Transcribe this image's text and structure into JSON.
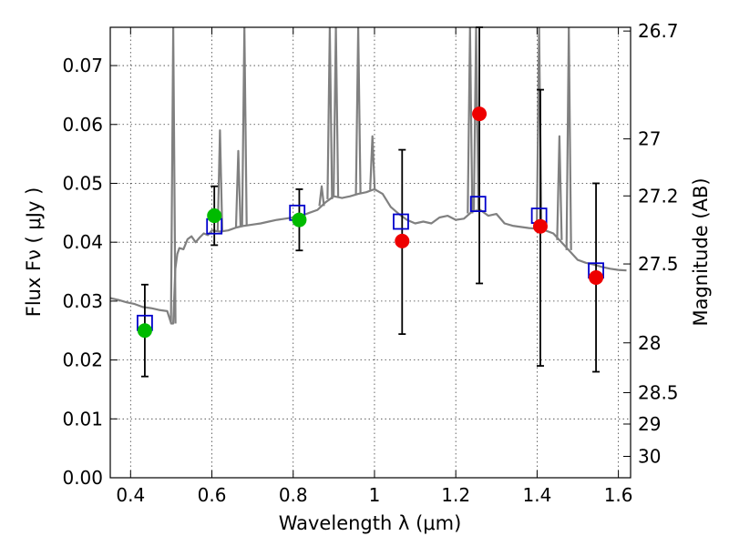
{
  "chart_data": {
    "type": "scatter",
    "xlabel": "Wavelength  λ (μm)",
    "ylabel": "Flux  Fν  ( μJy )",
    "ylabel_right": "Magnitude (AB)",
    "xlim": [
      0.35,
      1.63
    ],
    "ylim": [
      0.0,
      0.0765
    ],
    "x_ticks": [
      0.4,
      0.6,
      0.8,
      1.0,
      1.2,
      1.4,
      1.6
    ],
    "x_tick_labels": [
      "0.4",
      "0.6",
      "0.8",
      "1",
      "1.2",
      "1.4",
      "1.6"
    ],
    "y_ticks": [
      0.0,
      0.01,
      0.02,
      0.03,
      0.04,
      0.05,
      0.06,
      0.07
    ],
    "y_tick_labels": [
      "0.00",
      "0.01",
      "0.02",
      "0.03",
      "0.04",
      "0.05",
      "0.06",
      "0.07"
    ],
    "right_ticks": [
      26.7,
      27,
      27.2,
      27.5,
      28,
      28.5,
      29,
      30
    ],
    "right_tick_labels": [
      "26.7",
      "27",
      "27.2",
      "27.5",
      "28",
      "28.5",
      "29",
      "30"
    ],
    "grid": true,
    "colors": {
      "model": "#808080",
      "model_photometry": "#0000cc",
      "detection": "#00bb00",
      "nondetection": "#ee0000",
      "errorbar": "#000000"
    },
    "series": [
      {
        "kind": "line",
        "x": [
          0.35,
          0.37,
          0.39,
          0.41,
          0.43,
          0.45,
          0.47,
          0.49,
          0.5,
          0.505,
          0.51,
          0.515,
          0.52,
          0.53,
          0.54,
          0.55,
          0.56,
          0.57,
          0.58,
          0.59,
          0.6,
          0.62,
          0.64,
          0.66,
          0.68,
          0.7,
          0.72,
          0.74,
          0.76,
          0.78,
          0.8,
          0.82,
          0.84,
          0.86,
          0.88,
          0.9,
          0.92,
          0.94,
          0.96,
          0.98,
          1.0,
          1.02,
          1.04,
          1.06,
          1.08,
          1.1,
          1.12,
          1.14,
          1.16,
          1.18,
          1.2,
          1.22,
          1.24,
          1.26,
          1.28,
          1.3,
          1.32,
          1.34,
          1.36,
          1.38,
          1.4,
          1.42,
          1.44,
          1.46,
          1.48,
          1.5,
          1.52,
          1.54,
          1.56,
          1.58,
          1.6,
          1.62
        ],
        "y": [
          0.0305,
          0.0302,
          0.0298,
          0.0295,
          0.029,
          0.0288,
          0.0285,
          0.0283,
          0.0262,
          0.0262,
          0.0355,
          0.038,
          0.039,
          0.0388,
          0.0405,
          0.041,
          0.04,
          0.0408,
          0.0415,
          0.0412,
          0.042,
          0.0418,
          0.042,
          0.0425,
          0.0428,
          0.043,
          0.0432,
          0.0435,
          0.0438,
          0.044,
          0.0442,
          0.0445,
          0.045,
          0.0455,
          0.0468,
          0.0478,
          0.0475,
          0.0478,
          0.0482,
          0.0485,
          0.049,
          0.0482,
          0.046,
          0.0448,
          0.0438,
          0.0432,
          0.0435,
          0.0432,
          0.0442,
          0.0445,
          0.0438,
          0.044,
          0.0452,
          0.0455,
          0.0445,
          0.0448,
          0.0432,
          0.0428,
          0.0426,
          0.0424,
          0.0423,
          0.042,
          0.0415,
          0.04,
          0.0385,
          0.037,
          0.0365,
          0.0362,
          0.0358,
          0.0355,
          0.0353,
          0.0352
        ]
      },
      {
        "kind": "model-spikes",
        "x": [
          0.505,
          0.62,
          0.665,
          0.68,
          0.87,
          0.89,
          0.905,
          0.96,
          0.995,
          1.235,
          1.25,
          1.405,
          1.455,
          1.478
        ],
        "y": [
          0.0765,
          0.059,
          0.0555,
          0.0765,
          0.0495,
          0.0765,
          0.0765,
          0.0765,
          0.058,
          0.0765,
          0.0765,
          0.0765,
          0.058,
          0.0765
        ]
      },
      {
        "kind": "model-photometry",
        "x": [
          0.435,
          0.606,
          0.81,
          1.065,
          1.255,
          1.405,
          1.545
        ],
        "y": [
          0.0263,
          0.0427,
          0.045,
          0.0435,
          0.0465,
          0.0445,
          0.0352
        ]
      },
      {
        "kind": "detections",
        "x": [
          0.435,
          0.606,
          0.815
        ],
        "y": [
          0.025,
          0.0445,
          0.0438
        ],
        "yerr": [
          0.0078,
          0.005,
          0.0052
        ]
      },
      {
        "kind": "non-detections",
        "x": [
          1.068,
          1.258,
          1.408,
          1.545
        ],
        "y": [
          0.0402,
          0.0618,
          0.0427,
          0.034
        ],
        "yerr_low": [
          0.0158,
          0.0288,
          0.0237,
          0.016
        ],
        "yerr_high": [
          0.0155,
          0.0335,
          0.0232,
          0.016
        ]
      }
    ]
  }
}
